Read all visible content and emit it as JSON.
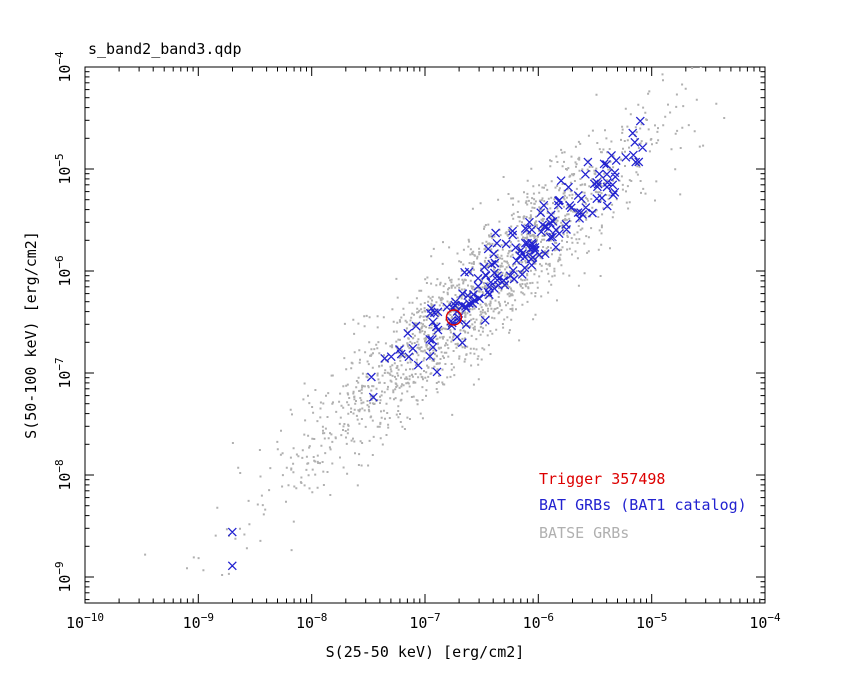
{
  "chart_data": {
    "type": "scatter",
    "title": "s_band2_band3.qdp",
    "xlabel": "S(25-50 keV) [erg/cm2]",
    "ylabel": "S(50-100 keV) [erg/cm2]",
    "background": "#ffffff",
    "frame_color": "#000000",
    "text_color": "#000000",
    "grid": false,
    "x_scale": "log",
    "y_scale": "log",
    "x_log_range": [
      -10,
      -4
    ],
    "y_log_range": [
      -9.255,
      -4.0
    ],
    "x_tick_exponents": [
      -10,
      -9,
      -8,
      -7,
      -6,
      -5,
      -4
    ],
    "y_tick_exponents": [
      -9,
      -8,
      -7,
      -6,
      -5,
      -4
    ],
    "series": [
      {
        "name": "BATSE GRBs",
        "marker": "dot",
        "marker_size": 2,
        "color": "#b0b0b0",
        "n": 1800,
        "seed": 1234567,
        "logx_mean": -6.55,
        "logx_sigma": 0.82,
        "logx_clip": [
          -9.55,
          -4.45
        ],
        "trend_slope": 1.0,
        "trend_intercept": 0.3,
        "scatter_sigma": 0.3,
        "logy_clip": [
          -9.2,
          -3.98
        ],
        "extra_log_points": [
          [
            -9.47,
            -8.78
          ],
          [
            -8.79,
            -8.98
          ],
          [
            -4.62,
            -4.63
          ],
          [
            -4.36,
            -4.5
          ],
          [
            -4.43,
            -4.36
          ]
        ]
      },
      {
        "name": "BAT GRBs (BAT1 catalog)",
        "marker": "x",
        "marker_size": 8,
        "color": "#2222d0",
        "n": 168,
        "seed": 424242,
        "logx_mean": -6.22,
        "logx_sigma": 0.58,
        "logx_clip": [
          -8.72,
          -5.03
        ],
        "trend_slope": 1.0,
        "trend_intercept": 0.32,
        "scatter_sigma": 0.15,
        "logy_clip": [
          -8.95,
          -4.4
        ],
        "extra_log_points": [
          [
            -5.08,
            -4.79
          ],
          [
            -8.7,
            -8.56
          ],
          [
            -8.7,
            -8.89
          ],
          [
            -6.77,
            -6.49
          ]
        ]
      }
    ],
    "highlight": {
      "label": "Trigger 357498",
      "x": 1.8e-07,
      "y": 3.5e-07,
      "marker": "open-circle",
      "radius": 7.5,
      "color": "#dd0000"
    },
    "legend": {
      "items": [
        {
          "label": "Trigger 357498",
          "color": "#dd0000"
        },
        {
          "label": "BAT GRBs (BAT1 catalog)",
          "color": "#2222d0"
        },
        {
          "label": "BATSE GRBs",
          "color": "#b0b0b0"
        }
      ]
    }
  }
}
